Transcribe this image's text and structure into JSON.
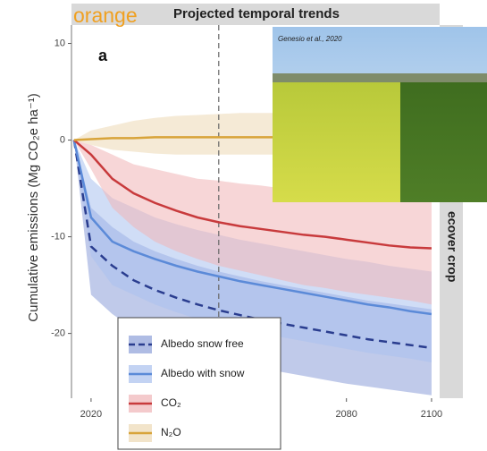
{
  "chart_data": {
    "type": "line",
    "title": "Projected temporal trends",
    "overlay_text": "orange",
    "panel_label": "a",
    "ylabel": "Cumulative emissions (Mg CO₂e ha⁻¹)",
    "strip_label": "ecover crop",
    "photo_caption": "Genesio et al., 2020",
    "x": [
      2016,
      2020,
      2025,
      2030,
      2035,
      2040,
      2045,
      2050,
      2055,
      2060,
      2065,
      2070,
      2075,
      2080,
      2085,
      2090,
      2095,
      2100
    ],
    "xlim": [
      2015.4,
      2101.9
    ],
    "xticks": [
      2020,
      2080,
      2100
    ],
    "ylim": [
      -26.7,
      11.9
    ],
    "yticks": [
      10,
      0,
      -10,
      -20
    ],
    "vline": 2050,
    "grid": false,
    "series": [
      {
        "name": "Albedo snow free",
        "color": "#2a3d8f",
        "band_color": "#8d9fd8",
        "linestyle": "dashed",
        "values": [
          0,
          -11,
          -13,
          -14.5,
          -15.5,
          -16.3,
          -17,
          -17.6,
          -18.1,
          -18.6,
          -19,
          -19.4,
          -19.8,
          -20.2,
          -20.6,
          -20.9,
          -21.2,
          -21.5
        ],
        "upper": [
          0,
          -7,
          -9,
          -10.5,
          -11.5,
          -12.3,
          -13,
          -13.6,
          -14.1,
          -14.6,
          -15,
          -15.4,
          -15.8,
          -16.2,
          -16.6,
          -16.9,
          -17.2,
          -17.5
        ],
        "lower": [
          0,
          -16,
          -18,
          -19.5,
          -20.5,
          -21.3,
          -22,
          -22.6,
          -23.1,
          -23.6,
          -24,
          -24.4,
          -24.8,
          -25.2,
          -25.5,
          -25.8,
          -26.1,
          -26.4
        ]
      },
      {
        "name": "Albedo with snow",
        "color": "#5b8ad8",
        "band_color": "#a9c1ee",
        "linestyle": "solid",
        "values": [
          0,
          -8,
          -10.5,
          -11.5,
          -12.3,
          -13,
          -13.6,
          -14.1,
          -14.6,
          -15,
          -15.4,
          -15.8,
          -16.2,
          -16.6,
          -17,
          -17.3,
          -17.7,
          -18
        ],
        "upper": [
          0,
          -4,
          -6,
          -7,
          -8,
          -8.7,
          -9.3,
          -9.8,
          -10.3,
          -10.7,
          -11.1,
          -11.5,
          -11.9,
          -12.3,
          -12.6,
          -13,
          -13.3,
          -13.6
        ],
        "lower": [
          0,
          -12,
          -15,
          -16,
          -17,
          -17.8,
          -18.5,
          -19,
          -19.5,
          -20,
          -20.4,
          -20.8,
          -21.2,
          -21.6,
          -22,
          -22.3,
          -22.6,
          -23
        ]
      },
      {
        "name": "CO₂",
        "color": "#c83a3c",
        "band_color": "#f0b4b6",
        "linestyle": "solid",
        "values": [
          0,
          -1.5,
          -4,
          -5.5,
          -6.5,
          -7.3,
          -8,
          -8.5,
          -8.9,
          -9.2,
          -9.5,
          -9.8,
          -10,
          -10.3,
          -10.6,
          -10.9,
          -11.1,
          -11.2
        ],
        "upper": [
          0,
          -0.5,
          -1.5,
          -2.5,
          -3,
          -3.5,
          -4,
          -4.2,
          -4.5,
          -4.7,
          -5,
          -5.2,
          -5.4,
          -5.6,
          -5.8,
          -6,
          -6.1,
          -6.2
        ],
        "lower": [
          0,
          -3,
          -7,
          -9,
          -10.5,
          -11.5,
          -12.3,
          -13,
          -13.5,
          -14,
          -14.5,
          -15,
          -15.3,
          -15.7,
          -16,
          -16.3,
          -16.6,
          -17
        ]
      },
      {
        "name": "N₂O",
        "color": "#d8a43a",
        "band_color": "#ecd9b4",
        "linestyle": "solid",
        "values": [
          0,
          0.1,
          0.2,
          0.2,
          0.3,
          0.3,
          0.3,
          0.3,
          0.3,
          0.3,
          0.3,
          0.3,
          0.3,
          0.3,
          0.3,
          0.3,
          0.3,
          0.3
        ],
        "upper": [
          0,
          1,
          1.5,
          2,
          2.3,
          2.5,
          2.6,
          2.7,
          2.8,
          2.8,
          2.8,
          2.8,
          2.8,
          2.8,
          2.8,
          2.8,
          2.8,
          2.8
        ],
        "lower": [
          0,
          -0.5,
          -1,
          -1.2,
          -1.4,
          -1.5,
          -1.5,
          -1.5,
          -1.5,
          -1.5,
          -1.5,
          -1.5,
          -1.5,
          -1.5,
          -1.5,
          -1.5,
          -1.5,
          -1.5
        ]
      }
    ]
  }
}
